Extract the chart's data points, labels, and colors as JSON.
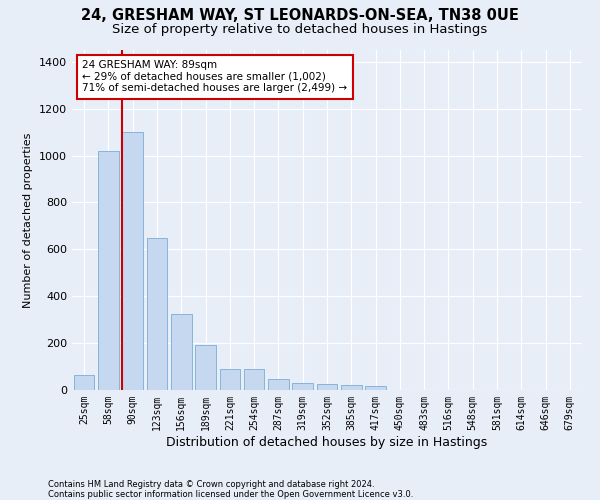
{
  "title1": "24, GRESHAM WAY, ST LEONARDS-ON-SEA, TN38 0UE",
  "title2": "Size of property relative to detached houses in Hastings",
  "xlabel": "Distribution of detached houses by size in Hastings",
  "ylabel": "Number of detached properties",
  "categories": [
    "25sqm",
    "58sqm",
    "90sqm",
    "123sqm",
    "156sqm",
    "189sqm",
    "221sqm",
    "254sqm",
    "287sqm",
    "319sqm",
    "352sqm",
    "385sqm",
    "417sqm",
    "450sqm",
    "483sqm",
    "516sqm",
    "548sqm",
    "581sqm",
    "614sqm",
    "646sqm",
    "679sqm"
  ],
  "values": [
    62,
    1020,
    1100,
    650,
    325,
    190,
    90,
    88,
    48,
    30,
    25,
    22,
    15,
    0,
    0,
    0,
    0,
    0,
    0,
    0,
    0
  ],
  "bar_color": "#c5d8f0",
  "bar_edge_color": "#7aadd4",
  "vline_color": "#cc0000",
  "vline_x": 1.575,
  "annotation_text": "24 GRESHAM WAY: 89sqm\n← 29% of detached houses are smaller (1,002)\n71% of semi-detached houses are larger (2,499) →",
  "annotation_box_color": "#ffffff",
  "annotation_box_edge_color": "#cc0000",
  "ylim": [
    0,
    1450
  ],
  "yticks": [
    0,
    200,
    400,
    600,
    800,
    1000,
    1200,
    1400
  ],
  "footnote1": "Contains HM Land Registry data © Crown copyright and database right 2024.",
  "footnote2": "Contains public sector information licensed under the Open Government Licence v3.0.",
  "bg_color": "#e8eef8",
  "plot_bg_color": "#e8eef8",
  "title1_fontsize": 10.5,
  "title2_fontsize": 9.5,
  "ann_fontsize": 7.5,
  "ylabel_fontsize": 8,
  "xlabel_fontsize": 9,
  "tick_fontsize": 7
}
